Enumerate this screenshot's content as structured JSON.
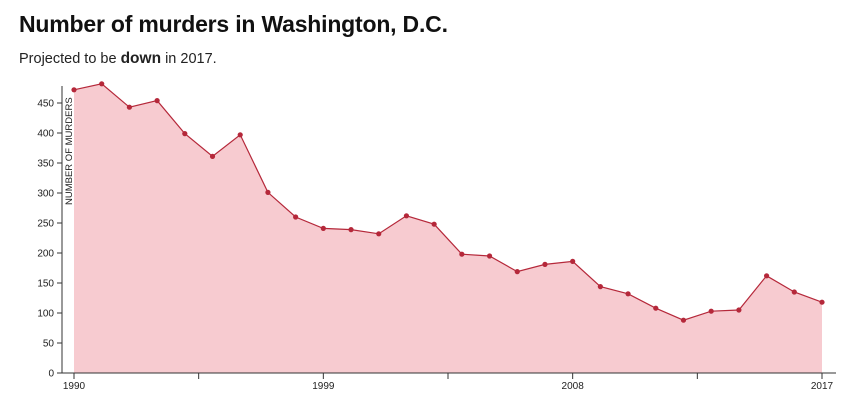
{
  "header": {
    "title": "Number of murders in Washington, D.C.",
    "subtitle_before": "Projected to be ",
    "subtitle_bold": "down",
    "subtitle_after": " in 2017."
  },
  "colors": {
    "area_fill": "#f7cbd0",
    "line": "#b5283a",
    "point": "#b5283a",
    "axis": "#333333"
  },
  "chart_data": {
    "type": "area",
    "title": "Number of murders in Washington, D.C.",
    "subtitle": "Projected to be down in 2017.",
    "xlabel": "",
    "ylabel": "NUMBER OF MURDERS",
    "x": [
      1990,
      1991,
      1992,
      1993,
      1994,
      1995,
      1996,
      1997,
      1998,
      1999,
      2000,
      2001,
      2002,
      2003,
      2004,
      2005,
      2006,
      2007,
      2008,
      2009,
      2010,
      2011,
      2012,
      2013,
      2014,
      2015,
      2016,
      2017
    ],
    "series": [
      {
        "values": [
          472,
          482,
          443,
          454,
          399,
          361,
          397,
          301,
          260,
          241,
          239,
          232,
          262,
          248,
          198,
          195,
          169,
          181,
          186,
          144,
          132,
          108,
          88,
          103,
          105,
          162,
          135,
          118
        ]
      }
    ],
    "xlim": [
      1990,
      2017
    ],
    "ylim": [
      0,
      480
    ],
    "x_ticks": [
      1990,
      1999,
      2008,
      2017
    ],
    "x_minor_ticks": [
      1994.5,
      2003.5,
      2012.5
    ],
    "y_ticks": [
      0,
      50,
      100,
      150,
      200,
      250,
      300,
      350,
      400,
      450
    ],
    "grid": false,
    "legend": "none"
  }
}
